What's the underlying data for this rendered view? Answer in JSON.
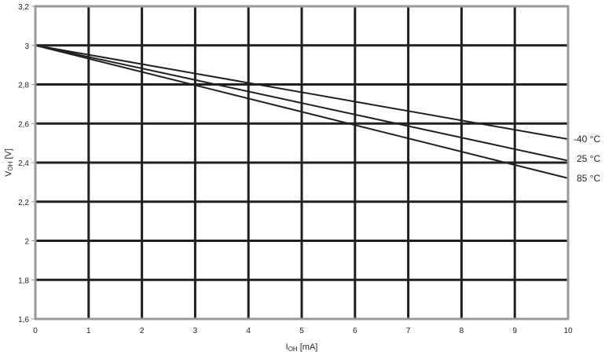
{
  "chart_data": {
    "type": "line",
    "title": "",
    "xlabel": {
      "main": "I",
      "sub": "OH",
      "unit": " [mA]"
    },
    "ylabel": {
      "main": "V",
      "sub": "OH",
      "unit": " [V]"
    },
    "xlim": [
      0,
      10
    ],
    "ylim": [
      1.6,
      3.2
    ],
    "grid": true,
    "x_ticks": [
      "0",
      "1",
      "2",
      "3",
      "4",
      "5",
      "6",
      "7",
      "8",
      "9",
      "10"
    ],
    "y_ticks": [
      "1,6",
      "1,8",
      "2",
      "2,2",
      "2,4",
      "2,6",
      "2,8",
      "3",
      "3,2"
    ],
    "series": [
      {
        "name": "-40 °C",
        "x": [
          0,
          10
        ],
        "y": [
          3.0,
          2.52
        ]
      },
      {
        "name": "25 °C",
        "x": [
          0,
          10
        ],
        "y": [
          3.0,
          2.41
        ]
      },
      {
        "name": "85 °C",
        "x": [
          0,
          10
        ],
        "y": [
          3.0,
          2.32
        ]
      }
    ],
    "colors": {
      "line": "#231f20",
      "grid": "#231f20",
      "frame": "#999999"
    }
  }
}
